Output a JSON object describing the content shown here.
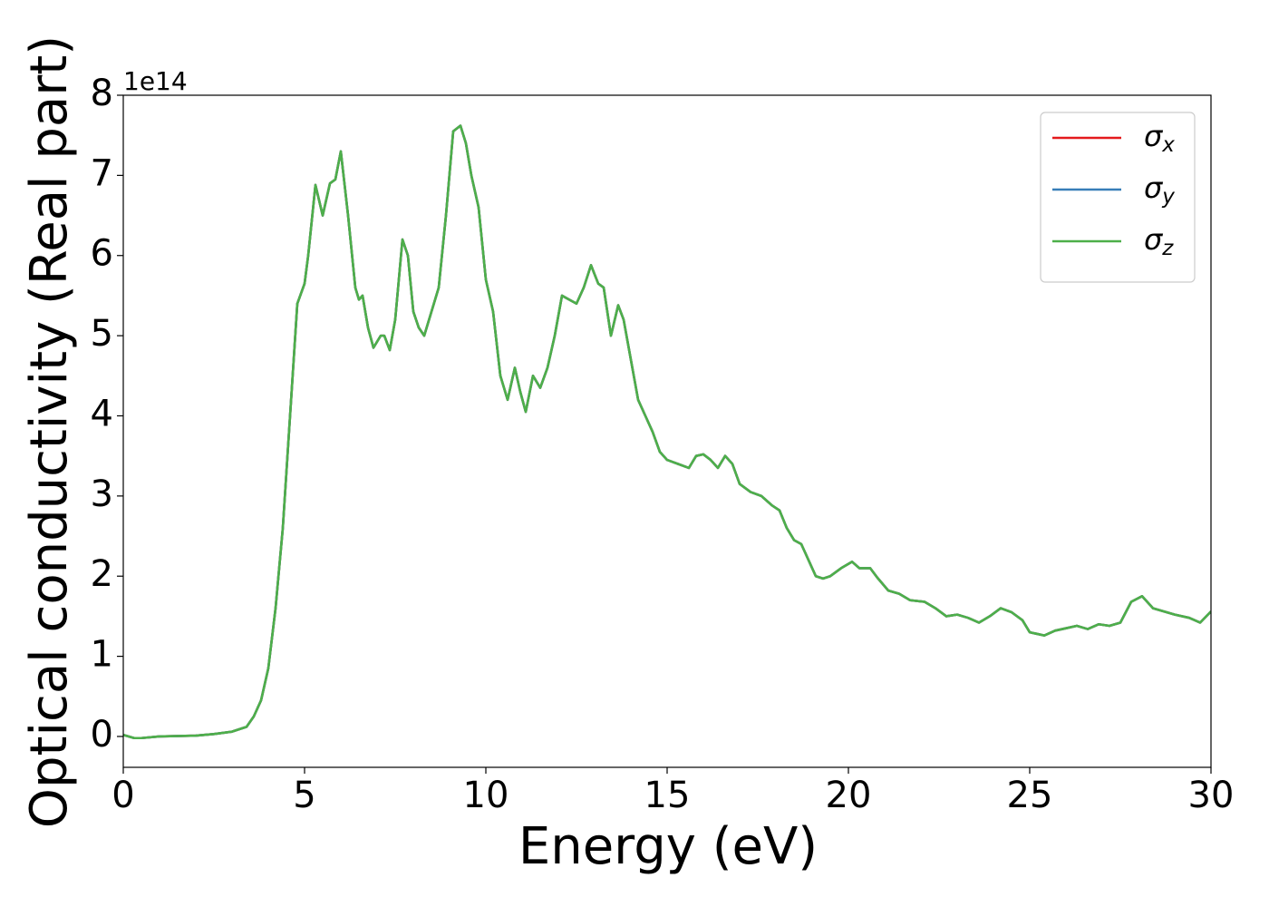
{
  "chart_data": {
    "type": "line",
    "xlabel": "Energy (eV)",
    "ylabel": "Optical conductivity (Real part)",
    "y_offset_label": "1e14",
    "xlim": [
      0,
      30
    ],
    "xticks": [
      0,
      5,
      10,
      15,
      20,
      25,
      30
    ],
    "ylim": [
      -0.385,
      8.0
    ],
    "yticks": [
      0,
      1,
      2,
      3,
      4,
      5,
      6,
      7,
      8
    ],
    "grid": false,
    "legend": "upper right",
    "x": [
      0,
      0.3,
      0.5,
      1,
      2,
      2.5,
      3,
      3.4,
      3.6,
      3.8,
      4.0,
      4.2,
      4.4,
      4.6,
      4.8,
      5.0,
      5.1,
      5.3,
      5.5,
      5.7,
      5.85,
      6.0,
      6.2,
      6.4,
      6.5,
      6.6,
      6.75,
      6.9,
      7.1,
      7.2,
      7.35,
      7.5,
      7.7,
      7.85,
      8.0,
      8.15,
      8.3,
      8.5,
      8.7,
      8.9,
      9.1,
      9.3,
      9.45,
      9.6,
      9.8,
      10.0,
      10.2,
      10.4,
      10.6,
      10.8,
      10.95,
      11.1,
      11.3,
      11.5,
      11.7,
      11.9,
      12.1,
      12.3,
      12.5,
      12.7,
      12.9,
      13.1,
      13.25,
      13.45,
      13.65,
      13.8,
      14.0,
      14.2,
      14.4,
      14.6,
      14.8,
      15.0,
      15.3,
      15.6,
      15.8,
      16.0,
      16.2,
      16.4,
      16.6,
      16.8,
      17.0,
      17.3,
      17.6,
      17.9,
      18.1,
      18.3,
      18.5,
      18.7,
      18.9,
      19.1,
      19.3,
      19.5,
      19.8,
      20.1,
      20.3,
      20.6,
      20.8,
      21.1,
      21.4,
      21.7,
      22.1,
      22.4,
      22.7,
      23.0,
      23.3,
      23.6,
      23.9,
      24.2,
      24.5,
      24.8,
      25.0,
      25.4,
      25.7,
      26.0,
      26.3,
      26.6,
      26.9,
      27.2,
      27.5,
      27.8,
      28.1,
      28.4,
      28.7,
      29.0,
      29.4,
      29.7,
      30.0
    ],
    "series": [
      {
        "name": "σx",
        "color": "#e41a1c",
        "values": [
          0.02,
          -0.02,
          -0.02,
          0.0,
          0.01,
          0.03,
          0.06,
          0.12,
          0.25,
          0.45,
          0.85,
          1.6,
          2.6,
          4.0,
          5.4,
          5.65,
          6.0,
          6.88,
          6.5,
          6.9,
          6.95,
          7.3,
          6.5,
          5.6,
          5.45,
          5.5,
          5.1,
          4.85,
          5.0,
          5.0,
          4.82,
          5.2,
          6.2,
          6.0,
          5.3,
          5.1,
          5.0,
          5.3,
          5.6,
          6.5,
          7.55,
          7.62,
          7.4,
          7.0,
          6.6,
          5.7,
          5.3,
          4.5,
          4.2,
          4.6,
          4.3,
          4.05,
          4.5,
          4.35,
          4.6,
          5.0,
          5.5,
          5.45,
          5.4,
          5.6,
          5.88,
          5.65,
          5.6,
          5.0,
          5.38,
          5.2,
          4.7,
          4.2,
          4.0,
          3.8,
          3.55,
          3.45,
          3.4,
          3.35,
          3.5,
          3.52,
          3.45,
          3.35,
          3.5,
          3.4,
          3.15,
          3.05,
          3.0,
          2.88,
          2.82,
          2.6,
          2.45,
          2.4,
          2.2,
          2.0,
          1.97,
          2.0,
          2.1,
          2.18,
          2.1,
          2.1,
          1.98,
          1.82,
          1.78,
          1.7,
          1.68,
          1.6,
          1.5,
          1.52,
          1.48,
          1.42,
          1.5,
          1.6,
          1.55,
          1.45,
          1.3,
          1.26,
          1.32,
          1.35,
          1.38,
          1.34,
          1.4,
          1.38,
          1.42,
          1.68,
          1.75,
          1.6,
          1.56,
          1.52,
          1.48,
          1.42,
          1.56
        ]
      },
      {
        "name": "σy",
        "color": "#377eb8",
        "values": [
          0.02,
          -0.02,
          -0.02,
          0.0,
          0.01,
          0.03,
          0.06,
          0.12,
          0.25,
          0.45,
          0.85,
          1.6,
          2.6,
          4.0,
          5.4,
          5.65,
          6.0,
          6.88,
          6.5,
          6.9,
          6.95,
          7.3,
          6.5,
          5.6,
          5.45,
          5.5,
          5.1,
          4.85,
          5.0,
          5.0,
          4.82,
          5.2,
          6.2,
          6.0,
          5.3,
          5.1,
          5.0,
          5.3,
          5.6,
          6.5,
          7.55,
          7.62,
          7.4,
          7.0,
          6.6,
          5.7,
          5.3,
          4.5,
          4.2,
          4.6,
          4.3,
          4.05,
          4.5,
          4.35,
          4.6,
          5.0,
          5.5,
          5.45,
          5.4,
          5.6,
          5.88,
          5.65,
          5.6,
          5.0,
          5.38,
          5.2,
          4.7,
          4.2,
          4.0,
          3.8,
          3.55,
          3.45,
          3.4,
          3.35,
          3.5,
          3.52,
          3.45,
          3.35,
          3.5,
          3.4,
          3.15,
          3.05,
          3.0,
          2.88,
          2.82,
          2.6,
          2.45,
          2.4,
          2.2,
          2.0,
          1.97,
          2.0,
          2.1,
          2.18,
          2.1,
          2.1,
          1.98,
          1.82,
          1.78,
          1.7,
          1.68,
          1.6,
          1.5,
          1.52,
          1.48,
          1.42,
          1.5,
          1.6,
          1.55,
          1.45,
          1.3,
          1.26,
          1.32,
          1.35,
          1.38,
          1.34,
          1.4,
          1.38,
          1.42,
          1.68,
          1.75,
          1.6,
          1.56,
          1.52,
          1.48,
          1.42,
          1.56
        ]
      },
      {
        "name": "σz",
        "color": "#4daf4a",
        "values": [
          0.02,
          -0.02,
          -0.02,
          0.0,
          0.01,
          0.03,
          0.06,
          0.12,
          0.25,
          0.45,
          0.85,
          1.6,
          2.6,
          4.0,
          5.4,
          5.65,
          6.0,
          6.88,
          6.5,
          6.9,
          6.95,
          7.3,
          6.5,
          5.6,
          5.45,
          5.5,
          5.1,
          4.85,
          5.0,
          5.0,
          4.82,
          5.2,
          6.2,
          6.0,
          5.3,
          5.1,
          5.0,
          5.3,
          5.6,
          6.5,
          7.55,
          7.62,
          7.4,
          7.0,
          6.6,
          5.7,
          5.3,
          4.5,
          4.2,
          4.6,
          4.3,
          4.05,
          4.5,
          4.35,
          4.6,
          5.0,
          5.5,
          5.45,
          5.4,
          5.6,
          5.88,
          5.65,
          5.6,
          5.0,
          5.38,
          5.2,
          4.7,
          4.2,
          4.0,
          3.8,
          3.55,
          3.45,
          3.4,
          3.35,
          3.5,
          3.52,
          3.45,
          3.35,
          3.5,
          3.4,
          3.15,
          3.05,
          3.0,
          2.88,
          2.82,
          2.6,
          2.45,
          2.4,
          2.2,
          2.0,
          1.97,
          2.0,
          2.1,
          2.18,
          2.1,
          2.1,
          1.98,
          1.82,
          1.78,
          1.7,
          1.68,
          1.6,
          1.5,
          1.52,
          1.48,
          1.42,
          1.5,
          1.6,
          1.55,
          1.45,
          1.3,
          1.26,
          1.32,
          1.35,
          1.38,
          1.34,
          1.4,
          1.38,
          1.42,
          1.68,
          1.75,
          1.6,
          1.56,
          1.52,
          1.48,
          1.42,
          1.56
        ]
      }
    ]
  }
}
